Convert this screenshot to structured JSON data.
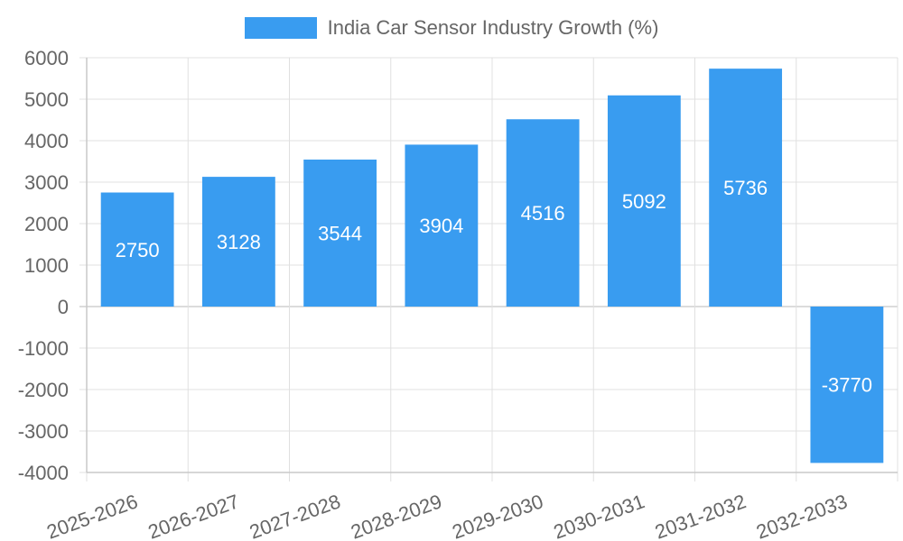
{
  "chart_data": {
    "type": "bar",
    "categories": [
      "2025-2026",
      "2026-2027",
      "2027-2028",
      "2028-2029",
      "2029-2030",
      "2030-2031",
      "2031-2032",
      "2032-2033"
    ],
    "series": [
      {
        "name": "India Car Sensor Industry Growth (%)",
        "values": [
          2750,
          3128,
          3544,
          3904,
          4516,
          5092,
          5736,
          -3770
        ]
      }
    ],
    "title": "",
    "xlabel": "",
    "ylabel": "",
    "ylim": [
      -4000,
      6000
    ],
    "yticks": [
      6000,
      5000,
      4000,
      3000,
      2000,
      1000,
      0,
      -1000,
      -2000,
      -3000,
      -4000
    ],
    "grid": true,
    "legend": "top-center",
    "data_labels": true,
    "colors": {
      "bar": "#399CF0",
      "grid": "#e0e0e0",
      "axis": "#c8c8c8",
      "text": "#666666",
      "label": "#ffffff"
    }
  }
}
